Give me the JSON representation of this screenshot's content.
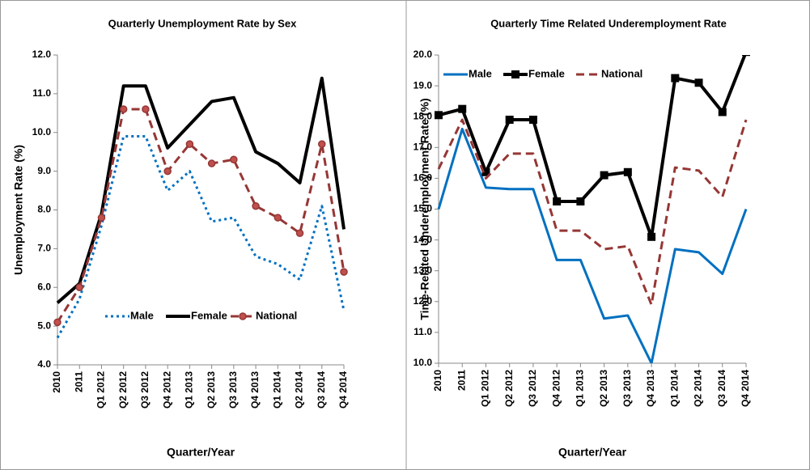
{
  "chart_data": [
    {
      "type": "line",
      "title": "Quarterly Unemployment Rate by Sex",
      "x_label": "Quarter/Year",
      "y_label": "Unemployment Rate (%)",
      "categories": [
        "2010",
        "2011",
        "Q1 2012",
        "Q2 2012",
        "Q3 2012",
        "Q4 2012",
        "Q1 2013",
        "Q2 2013",
        "Q3 2013",
        "Q4 2013",
        "Q1 2014",
        "Q2 2014",
        "Q3 2014",
        "Q4 2014"
      ],
      "ylim": [
        4,
        12
      ],
      "yticks": [
        {
          "value": 4,
          "label": "4.0"
        },
        {
          "value": 5,
          "label": "5.0"
        },
        {
          "value": 6,
          "label": "6.0"
        },
        {
          "value": 7,
          "label": "7.0"
        },
        {
          "value": 8,
          "label": "8.0"
        },
        {
          "value": 9,
          "label": "9.0"
        },
        {
          "value": 10,
          "label": "10.0"
        },
        {
          "value": 11,
          "label": "11.0"
        },
        {
          "value": 12,
          "label": "12.0"
        }
      ],
      "legend": "bottom",
      "series": [
        {
          "name": "Male",
          "color": "#0070c0",
          "dash": "dotted",
          "values": [
            4.7,
            5.7,
            7.6,
            9.9,
            9.9,
            8.5,
            9.0,
            7.7,
            7.8,
            6.8,
            6.6,
            6.2,
            8.1,
            5.4
          ]
        },
        {
          "name": "Female",
          "color": "#000000",
          "dash": "solid",
          "values": [
            5.6,
            6.1,
            7.9,
            11.2,
            11.2,
            9.6,
            10.2,
            10.8,
            10.9,
            9.5,
            9.2,
            8.7,
            11.4,
            7.5
          ]
        },
        {
          "name": "National",
          "color": "#953735",
          "dash": "dashed",
          "marker": "circle",
          "marker_color": "#c0504d",
          "values": [
            5.1,
            6.0,
            7.8,
            10.6,
            10.6,
            9.0,
            9.7,
            9.2,
            9.3,
            8.1,
            7.8,
            7.4,
            9.7,
            6.4
          ]
        }
      ]
    },
    {
      "type": "line",
      "title": "Quarterly Time Related Underemployment Rate",
      "x_label": "Quarter/Year",
      "y_label": "Time-Related Underemployment Rate (%)",
      "categories": [
        "2010",
        "2011",
        "Q1 2012",
        "Q2 2012",
        "Q3 2012",
        "Q4 2012",
        "Q1 2013",
        "Q2 2013",
        "Q3 2013",
        "Q4 2013",
        "Q1 2014",
        "Q2 2014",
        "Q3 2014",
        "Q4 2014"
      ],
      "ylim": [
        10,
        20
      ],
      "yticks": [
        {
          "value": 10,
          "label": "10.0"
        },
        {
          "value": 11,
          "label": "11.0"
        },
        {
          "value": 12,
          "label": "12.0"
        },
        {
          "value": 13,
          "label": "13.0"
        },
        {
          "value": 14,
          "label": "14.0"
        },
        {
          "value": 15,
          "label": "15.0"
        },
        {
          "value": 16,
          "label": "16.0"
        },
        {
          "value": 17,
          "label": "17.0"
        },
        {
          "value": 18,
          "label": "18.0"
        },
        {
          "value": 19,
          "label": "19.0"
        },
        {
          "value": 20,
          "label": "20.0"
        }
      ],
      "legend": "top-left",
      "series": [
        {
          "name": "Male",
          "color": "#0070c0",
          "dash": "solid",
          "values": [
            15.0,
            17.6,
            15.7,
            15.65,
            15.65,
            13.35,
            13.35,
            11.45,
            11.55,
            10.0,
            13.7,
            13.6,
            12.9,
            15.0
          ]
        },
        {
          "name": "Female",
          "color": "#000000",
          "dash": "solid",
          "marker": "square",
          "marker_color": "#000000",
          "values": [
            18.05,
            18.25,
            16.2,
            17.9,
            17.9,
            15.25,
            15.25,
            16.1,
            16.2,
            14.1,
            19.25,
            19.1,
            18.15,
            20.1
          ]
        },
        {
          "name": "National",
          "color": "#953735",
          "dash": "dashed",
          "values": [
            16.3,
            17.9,
            16.0,
            16.8,
            16.8,
            14.3,
            14.3,
            13.7,
            13.8,
            11.9,
            16.35,
            16.25,
            15.4,
            17.9
          ]
        }
      ]
    }
  ]
}
